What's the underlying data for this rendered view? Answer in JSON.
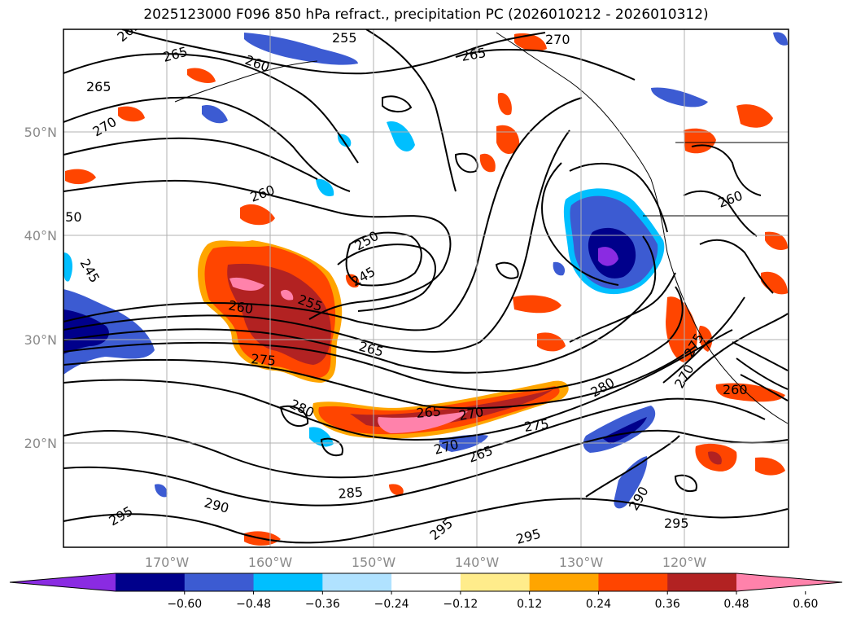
{
  "title": "2025123000 F096 850 hPa refract., precipitation PC (2026010212 - 2026010312)",
  "lat_labels": [
    "50°N",
    "40°N",
    "30°N",
    "20°N"
  ],
  "lon_labels": [
    "170°W",
    "160°W",
    "150°W",
    "140°W",
    "130°W",
    "120°W"
  ],
  "contour_labels": [
    "265",
    "255",
    "270",
    "260",
    "265",
    "265",
    "270",
    "265",
    "260",
    "250",
    "245",
    "245",
    "255",
    "260",
    "265",
    "275",
    "280",
    "265",
    "270",
    "275",
    "280",
    "270",
    "265",
    "270",
    "275",
    "260",
    "285",
    "290",
    "290",
    "295",
    "295",
    "295",
    "295",
    "260",
    "250"
  ],
  "colorbar": {
    "colors": [
      "#8a2be2",
      "#00008b",
      "#3c5bd2",
      "#00bfff",
      "#b0e2ff",
      "#ffffff",
      "#ffec8b",
      "#ffa500",
      "#ff4500",
      "#b22222",
      "#ff82ab"
    ],
    "tick_labels": [
      "−0.60",
      "−0.48",
      "−0.36",
      "−0.24",
      "−0.12",
      "0.12",
      "0.24",
      "0.36",
      "0.48",
      "0.60"
    ]
  },
  "colors": {
    "contour": "#000000",
    "grid": "#b0b0b0",
    "frame": "#000000"
  }
}
